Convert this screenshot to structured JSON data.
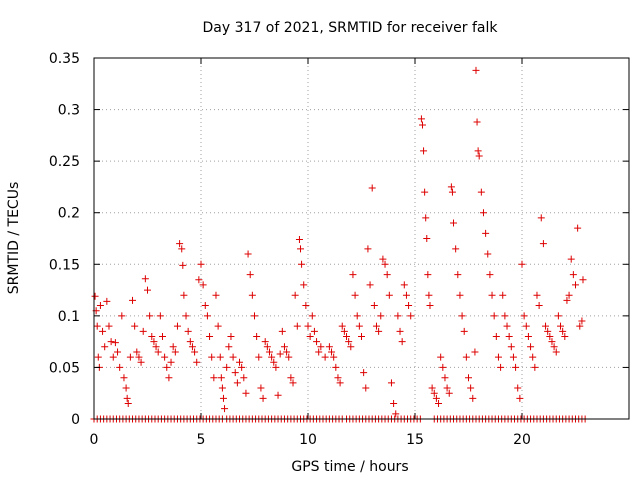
{
  "chart_data": {
    "type": "scatter",
    "title": "Day 317 of 2021, SRMTID for receiver falk",
    "xlabel": "GPS time / hours",
    "ylabel": "SRMTID / TECUs",
    "xlim": [
      0,
      25
    ],
    "ylim": [
      0,
      0.35
    ],
    "x_ticks": [
      0,
      5,
      10,
      15,
      20
    ],
    "x_tick_labels": [
      "0",
      "5",
      "10",
      "15",
      "20"
    ],
    "y_ticks": [
      0,
      0.05,
      0.1,
      0.15,
      0.2,
      0.25,
      0.3,
      0.35
    ],
    "y_tick_labels": [
      "0",
      "0.05",
      "0.1",
      "0.15",
      "0.2",
      "0.25",
      "0.3",
      "0.35"
    ],
    "grid": true,
    "marker": "+",
    "color": "#dd0000",
    "series": [
      {
        "name": "SRMTID",
        "points": [
          [
            0.05,
            0.119
          ],
          [
            0.1,
            0.105
          ],
          [
            0.15,
            0.09
          ],
          [
            0.2,
            0.06
          ],
          [
            0.25,
            0.05
          ],
          [
            0.3,
            0.11
          ],
          [
            0.4,
            0.085
          ],
          [
            0.5,
            0.07
          ],
          [
            0.6,
            0.114
          ],
          [
            0.7,
            0.09
          ],
          [
            0.8,
            0.075
          ],
          [
            0.9,
            0.06
          ],
          [
            1.0,
            0.074
          ],
          [
            1.1,
            0.065
          ],
          [
            1.2,
            0.05
          ],
          [
            1.3,
            0.1
          ],
          [
            1.4,
            0.04
          ],
          [
            1.5,
            0.03
          ],
          [
            1.55,
            0.02
          ],
          [
            1.6,
            0.015
          ],
          [
            1.7,
            0.06
          ],
          [
            1.8,
            0.115
          ],
          [
            1.9,
            0.09
          ],
          [
            2.0,
            0.065
          ],
          [
            2.1,
            0.06
          ],
          [
            2.2,
            0.055
          ],
          [
            2.3,
            0.085
          ],
          [
            2.4,
            0.136
          ],
          [
            2.5,
            0.125
          ],
          [
            2.6,
            0.1
          ],
          [
            2.7,
            0.08
          ],
          [
            2.8,
            0.075
          ],
          [
            2.9,
            0.07
          ],
          [
            3.0,
            0.065
          ],
          [
            3.1,
            0.1
          ],
          [
            3.2,
            0.08
          ],
          [
            3.3,
            0.06
          ],
          [
            3.4,
            0.05
          ],
          [
            3.5,
            0.04
          ],
          [
            3.6,
            0.055
          ],
          [
            3.7,
            0.07
          ],
          [
            3.8,
            0.065
          ],
          [
            3.9,
            0.09
          ],
          [
            4.0,
            0.17
          ],
          [
            4.1,
            0.165
          ],
          [
            4.15,
            0.149
          ],
          [
            4.2,
            0.12
          ],
          [
            4.3,
            0.1
          ],
          [
            4.4,
            0.085
          ],
          [
            4.5,
            0.075
          ],
          [
            4.6,
            0.07
          ],
          [
            4.7,
            0.065
          ],
          [
            4.8,
            0.055
          ],
          [
            4.9,
            0.135
          ],
          [
            5.0,
            0.15
          ],
          [
            5.1,
            0.13
          ],
          [
            5.2,
            0.11
          ],
          [
            5.3,
            0.1
          ],
          [
            5.4,
            0.08
          ],
          [
            5.5,
            0.06
          ],
          [
            5.6,
            0.04
          ],
          [
            5.7,
            0.12
          ],
          [
            5.8,
            0.09
          ],
          [
            5.9,
            0.06
          ],
          [
            5.95,
            0.04
          ],
          [
            6.0,
            0.03
          ],
          [
            6.05,
            0.02
          ],
          [
            6.1,
            0.01
          ],
          [
            6.2,
            0.05
          ],
          [
            6.3,
            0.07
          ],
          [
            6.4,
            0.08
          ],
          [
            6.5,
            0.06
          ],
          [
            6.6,
            0.045
          ],
          [
            6.7,
            0.035
          ],
          [
            6.8,
            0.055
          ],
          [
            6.9,
            0.05
          ],
          [
            7.0,
            0.04
          ],
          [
            7.1,
            0.025
          ],
          [
            7.2,
            0.16
          ],
          [
            7.3,
            0.14
          ],
          [
            7.4,
            0.12
          ],
          [
            7.5,
            0.1
          ],
          [
            7.6,
            0.08
          ],
          [
            7.7,
            0.06
          ],
          [
            7.8,
            0.03
          ],
          [
            7.9,
            0.02
          ],
          [
            8.0,
            0.075
          ],
          [
            8.1,
            0.07
          ],
          [
            8.2,
            0.065
          ],
          [
            8.3,
            0.06
          ],
          [
            8.4,
            0.055
          ],
          [
            8.5,
            0.05
          ],
          [
            8.6,
            0.023
          ],
          [
            8.7,
            0.063
          ],
          [
            8.8,
            0.085
          ],
          [
            8.9,
            0.07
          ],
          [
            9.0,
            0.065
          ],
          [
            9.1,
            0.06
          ],
          [
            9.2,
            0.04
          ],
          [
            9.3,
            0.035
          ],
          [
            9.4,
            0.12
          ],
          [
            9.5,
            0.09
          ],
          [
            9.6,
            0.174
          ],
          [
            9.65,
            0.165
          ],
          [
            9.7,
            0.15
          ],
          [
            9.8,
            0.13
          ],
          [
            9.9,
            0.11
          ],
          [
            10.0,
            0.09
          ],
          [
            10.1,
            0.08
          ],
          [
            10.2,
            0.1
          ],
          [
            10.3,
            0.085
          ],
          [
            10.4,
            0.075
          ],
          [
            10.5,
            0.065
          ],
          [
            10.6,
            0.07
          ],
          [
            10.8,
            0.06
          ],
          [
            11.0,
            0.07
          ],
          [
            11.1,
            0.065
          ],
          [
            11.2,
            0.06
          ],
          [
            11.3,
            0.05
          ],
          [
            11.4,
            0.04
          ],
          [
            11.5,
            0.035
          ],
          [
            11.6,
            0.09
          ],
          [
            11.7,
            0.085
          ],
          [
            11.8,
            0.08
          ],
          [
            11.9,
            0.075
          ],
          [
            12.0,
            0.07
          ],
          [
            12.1,
            0.14
          ],
          [
            12.2,
            0.12
          ],
          [
            12.3,
            0.1
          ],
          [
            12.4,
            0.09
          ],
          [
            12.5,
            0.08
          ],
          [
            12.6,
            0.045
          ],
          [
            12.7,
            0.03
          ],
          [
            12.8,
            0.165
          ],
          [
            12.9,
            0.13
          ],
          [
            13.0,
            0.224
          ],
          [
            13.1,
            0.11
          ],
          [
            13.2,
            0.09
          ],
          [
            13.3,
            0.085
          ],
          [
            13.4,
            0.1
          ],
          [
            13.5,
            0.155
          ],
          [
            13.6,
            0.15
          ],
          [
            13.7,
            0.14
          ],
          [
            13.8,
            0.12
          ],
          [
            13.9,
            0.035
          ],
          [
            14.0,
            0.015
          ],
          [
            14.1,
            0.005
          ],
          [
            14.2,
            0.1
          ],
          [
            14.3,
            0.085
          ],
          [
            14.4,
            0.075
          ],
          [
            14.5,
            0.13
          ],
          [
            14.6,
            0.12
          ],
          [
            14.7,
            0.11
          ],
          [
            14.8,
            0.1
          ],
          [
            15.3,
            0.291
          ],
          [
            15.35,
            0.285
          ],
          [
            15.4,
            0.26
          ],
          [
            15.45,
            0.22
          ],
          [
            15.5,
            0.195
          ],
          [
            15.55,
            0.175
          ],
          [
            15.6,
            0.14
          ],
          [
            15.65,
            0.12
          ],
          [
            15.7,
            0.11
          ],
          [
            15.8,
            0.03
          ],
          [
            15.9,
            0.025
          ],
          [
            16.0,
            0.02
          ],
          [
            16.1,
            0.015
          ],
          [
            16.2,
            0.06
          ],
          [
            16.3,
            0.05
          ],
          [
            16.4,
            0.04
          ],
          [
            16.5,
            0.03
          ],
          [
            16.6,
            0.025
          ],
          [
            16.7,
            0.225
          ],
          [
            16.75,
            0.22
          ],
          [
            16.8,
            0.19
          ],
          [
            16.9,
            0.165
          ],
          [
            17.0,
            0.14
          ],
          [
            17.1,
            0.12
          ],
          [
            17.2,
            0.1
          ],
          [
            17.3,
            0.085
          ],
          [
            17.4,
            0.06
          ],
          [
            17.5,
            0.04
          ],
          [
            17.6,
            0.03
          ],
          [
            17.7,
            0.02
          ],
          [
            17.8,
            0.065
          ],
          [
            17.85,
            0.338
          ],
          [
            17.9,
            0.288
          ],
          [
            17.95,
            0.26
          ],
          [
            18.0,
            0.255
          ],
          [
            18.1,
            0.22
          ],
          [
            18.2,
            0.2
          ],
          [
            18.3,
            0.18
          ],
          [
            18.4,
            0.16
          ],
          [
            18.5,
            0.14
          ],
          [
            18.6,
            0.12
          ],
          [
            18.7,
            0.1
          ],
          [
            18.8,
            0.08
          ],
          [
            18.9,
            0.06
          ],
          [
            19.0,
            0.05
          ],
          [
            19.1,
            0.12
          ],
          [
            19.2,
            0.1
          ],
          [
            19.3,
            0.09
          ],
          [
            19.4,
            0.08
          ],
          [
            19.5,
            0.07
          ],
          [
            19.6,
            0.06
          ],
          [
            19.7,
            0.05
          ],
          [
            19.8,
            0.03
          ],
          [
            19.9,
            0.02
          ],
          [
            20.0,
            0.15
          ],
          [
            20.1,
            0.1
          ],
          [
            20.2,
            0.09
          ],
          [
            20.3,
            0.08
          ],
          [
            20.4,
            0.07
          ],
          [
            20.5,
            0.06
          ],
          [
            20.6,
            0.05
          ],
          [
            20.7,
            0.12
          ],
          [
            20.8,
            0.11
          ],
          [
            20.9,
            0.195
          ],
          [
            21.0,
            0.17
          ],
          [
            21.1,
            0.09
          ],
          [
            21.2,
            0.085
          ],
          [
            21.3,
            0.08
          ],
          [
            21.4,
            0.075
          ],
          [
            21.5,
            0.07
          ],
          [
            21.6,
            0.065
          ],
          [
            21.7,
            0.1
          ],
          [
            21.8,
            0.09
          ],
          [
            21.9,
            0.085
          ],
          [
            22.0,
            0.08
          ],
          [
            22.1,
            0.115
          ],
          [
            22.2,
            0.12
          ],
          [
            22.3,
            0.155
          ],
          [
            22.4,
            0.14
          ],
          [
            22.5,
            0.13
          ],
          [
            22.6,
            0.185
          ],
          [
            22.7,
            0.09
          ],
          [
            22.8,
            0.095
          ],
          [
            22.85,
            0.135
          ]
        ],
        "zero_x_ranges": [
          [
            0.0,
            6.0
          ],
          [
            6.2,
            11.6
          ],
          [
            11.8,
            15.3
          ],
          [
            15.9,
            23.0
          ]
        ],
        "zero_step": 0.15
      }
    ]
  }
}
